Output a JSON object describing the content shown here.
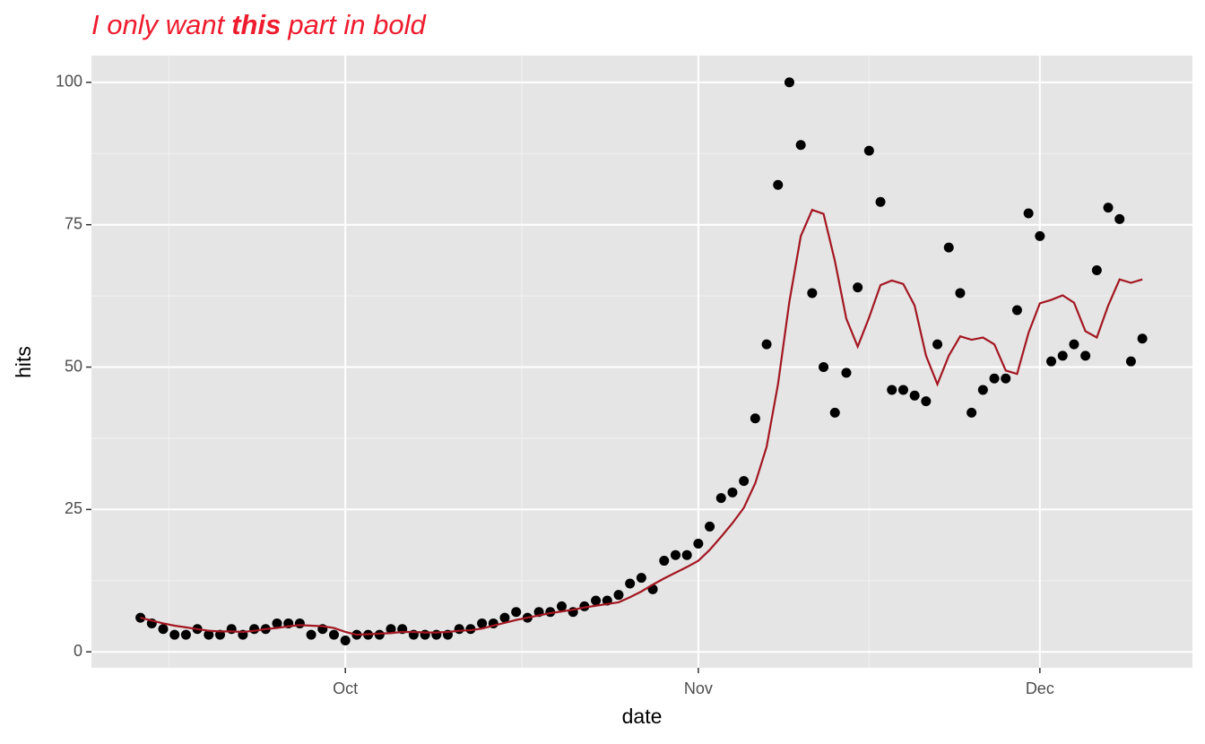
{
  "chart_data": {
    "type": "scatter",
    "title": [
      "I only want",
      "this",
      "part in bold"
    ],
    "title_bold_part": 1,
    "title_color": "#ee1c2e",
    "x_label": "date",
    "y_label": "hits",
    "x": [
      -18,
      -17,
      -16,
      -15,
      -14,
      -13,
      -12,
      -11,
      -10,
      -9,
      -8,
      -7,
      -6,
      -5,
      -4,
      -3,
      -2,
      -1,
      0,
      1,
      2,
      3,
      4,
      5,
      6,
      7,
      8,
      9,
      10,
      11,
      12,
      13,
      14,
      15,
      16,
      17,
      18,
      19,
      20,
      21,
      22,
      23,
      24,
      25,
      26,
      27,
      28,
      29,
      30,
      31,
      32,
      33,
      34,
      35,
      36,
      37,
      38,
      39,
      40,
      41,
      42,
      43,
      44,
      45,
      46,
      47,
      48,
      49,
      50,
      51,
      52,
      53,
      54,
      55,
      56,
      57,
      58,
      59,
      60,
      61,
      62,
      63,
      64,
      65,
      66,
      67,
      68,
      69,
      70
    ],
    "series": [
      {
        "type": "scatter",
        "color": "#000000",
        "values": [
          6,
          5,
          4,
          3,
          3,
          4,
          3,
          3,
          4,
          3,
          4,
          4,
          5,
          5,
          5,
          3,
          4,
          3,
          2,
          3,
          3,
          3,
          4,
          4,
          3,
          3,
          3,
          3,
          4,
          4,
          5,
          5,
          6,
          7,
          6,
          7,
          7,
          8,
          7,
          8,
          9,
          9,
          10,
          12,
          13,
          11,
          16,
          17,
          17,
          19,
          22,
          27,
          28,
          30,
          41,
          54,
          82,
          100,
          89,
          63,
          50,
          42,
          49,
          64,
          88,
          79,
          46,
          46,
          45,
          44,
          54,
          71,
          63,
          42,
          46,
          48,
          48,
          60,
          77,
          73,
          51,
          52,
          54,
          52,
          67,
          78,
          76,
          51,
          55
        ]
      },
      {
        "type": "line",
        "color": "#a31621",
        "values": [
          6,
          5.5,
          5,
          4.6,
          4.3,
          4,
          3.7,
          3.6,
          3.6,
          3.5,
          3.7,
          4,
          4.2,
          4.5,
          4.7,
          4.6,
          4.5,
          4.2,
          3.5,
          3,
          3.1,
          3.2,
          3.3,
          3.5,
          3.5,
          3.4,
          3.4,
          3.5,
          3.7,
          3.8,
          4.1,
          4.6,
          5.1,
          5.6,
          6,
          6.4,
          6.8,
          7.1,
          7.4,
          7.8,
          8.1,
          8.4,
          8.7,
          9.6,
          10.6,
          11.8,
          12.9,
          13.9,
          14.9,
          16,
          17.9,
          20.2,
          22.6,
          25.3,
          29.6,
          36,
          47,
          61.5,
          73,
          77.6,
          76.9,
          68.6,
          58.5,
          53.6,
          58.7,
          64.4,
          65.2,
          64.6,
          60.8,
          52,
          47,
          52,
          55.4,
          54.8,
          55.2,
          54,
          49.4,
          48.8,
          56,
          61.2,
          61.8,
          62.6,
          61.3,
          56.3,
          55.2,
          60.8,
          65.4,
          64.8,
          65.4
        ]
      }
    ],
    "xlim": [
      -22.3,
      74.4
    ],
    "xticks": [
      {
        "value": 0,
        "label": "Oct"
      },
      {
        "value": 31,
        "label": "Nov"
      },
      {
        "value": 61,
        "label": "Dec"
      }
    ],
    "ylim": [
      -2.8,
      104.7
    ],
    "yticks": [
      0,
      25,
      50,
      75,
      100
    ],
    "grid": true,
    "panel_color": "#e5e5e5"
  }
}
